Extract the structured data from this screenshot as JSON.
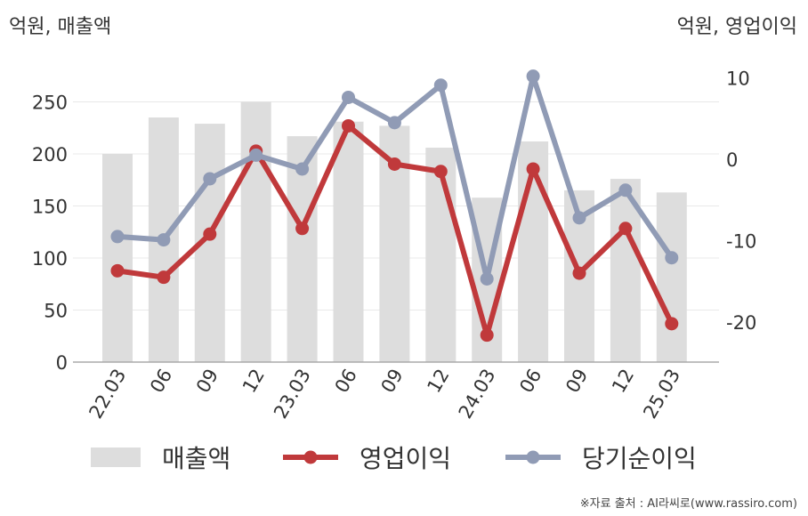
{
  "chart_data": {
    "type": "bar+line",
    "categories": [
      "22.03",
      "06",
      "09",
      "12",
      "23.03",
      "06",
      "09",
      "12",
      "24.03",
      "06",
      "09",
      "12",
      "25.03"
    ],
    "left_axis": {
      "title": "억원, 매출액",
      "ylim": [
        0,
        270
      ],
      "ticks": [
        0,
        50,
        100,
        150,
        200,
        250
      ]
    },
    "right_axis": {
      "title": "억원, 영업이익",
      "ylim": [
        -25,
        10
      ],
      "ticks": [
        -20,
        -10,
        0,
        10
      ]
    },
    "series": [
      {
        "name": "매출액",
        "kind": "bar",
        "axis": "left",
        "color": "#dddddd",
        "values": [
          200,
          235,
          229,
          250,
          217,
          231,
          227,
          206,
          158,
          212,
          165,
          176,
          163
        ]
      },
      {
        "name": "영업이익",
        "kind": "line",
        "axis": "right",
        "color": "#c0393b",
        "values": [
          -13.7,
          -14.5,
          -9.2,
          1.0,
          -8.5,
          4.1,
          -0.6,
          -1.5,
          -21.6,
          -1.2,
          -14.0,
          -8.5,
          -20.2
        ]
      },
      {
        "name": "당기순이익",
        "kind": "line",
        "axis": "right",
        "color": "#909bb5",
        "values": [
          -9.5,
          -9.9,
          -2.4,
          0.5,
          -1.2,
          7.6,
          4.5,
          9.1,
          -14.7,
          10.2,
          -7.2,
          -3.8,
          -12.1
        ]
      }
    ],
    "grid": true,
    "legend_position": "bottom"
  },
  "source": "※자료 출처 : AI라씨로(www.rassiro.com)"
}
